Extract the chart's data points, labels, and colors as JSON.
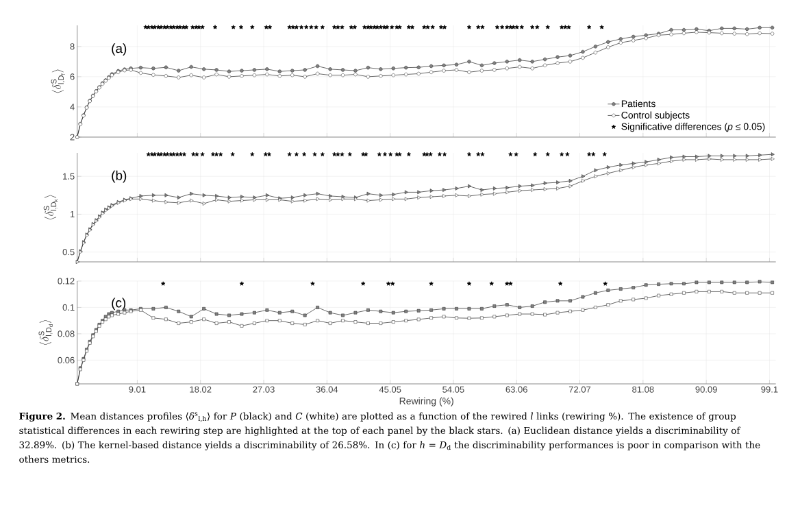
{
  "chart_data": [
    {
      "type": "line",
      "ylabel": "\\langle\\delta^{\\mathrm{S}}_{\\mathrm{l,D_f}}\\rangle",
      "marker": "circle",
      "grid": true,
      "legend": "bottom right",
      "tick_labels": "y",
      "xlim": [
        0.45,
        100
      ],
      "ylim": [
        2,
        9.4
      ],
      "xticks": [
        9.01,
        18.02,
        27.03,
        36.04,
        45.05,
        54.05,
        63.06,
        72.07,
        81.08,
        90.09,
        99.1
      ],
      "yticks": [
        2,
        4,
        6,
        8
      ],
      "annotations": [
        "(a)"
      ],
      "x": [
        0.45,
        0.9,
        1.35,
        1.8,
        2.25,
        2.7,
        3.15,
        3.6,
        4.05,
        4.5,
        4.95,
        5.4,
        6.3,
        7.2,
        8.1,
        9.5,
        11.3,
        13.1,
        14.9,
        16.7,
        18.5,
        20.3,
        22.1,
        23.9,
        25.7,
        27.5,
        29.3,
        31.1,
        32.9,
        34.7,
        36.5,
        38.3,
        40.1,
        41.9,
        43.7,
        45.5,
        47.3,
        49.1,
        50.9,
        52.7,
        54.5,
        56.3,
        58.1,
        59.9,
        61.7,
        63.5,
        65.3,
        67.1,
        68.9,
        70.7,
        72.5,
        74.3,
        76.1,
        77.9,
        79.7,
        81.5,
        83.3,
        85.1,
        86.9,
        88.7,
        90.5,
        92.3,
        94.1,
        95.9,
        97.7,
        99.5
      ],
      "series": [
        {
          "name": "Patients",
          "color": "#808080",
          "values": [
            2.0,
            2.88,
            3.45,
            3.97,
            4.41,
            4.75,
            5.05,
            5.31,
            5.57,
            5.77,
            5.97,
            6.17,
            6.38,
            6.49,
            6.55,
            6.6,
            6.55,
            6.62,
            6.4,
            6.65,
            6.5,
            6.45,
            6.35,
            6.4,
            6.45,
            6.5,
            6.35,
            6.4,
            6.45,
            6.7,
            6.5,
            6.45,
            6.4,
            6.6,
            6.5,
            6.55,
            6.6,
            6.62,
            6.7,
            6.75,
            6.8,
            7.0,
            6.75,
            6.9,
            7.0,
            7.1,
            7.0,
            7.15,
            7.3,
            7.4,
            7.65,
            8.0,
            8.3,
            8.5,
            8.65,
            8.75,
            8.85,
            9.1,
            9.1,
            9.15,
            9.05,
            9.2,
            9.2,
            9.15,
            9.25,
            9.25
          ]
        },
        {
          "name": "Control subjects",
          "color": "#ffffff",
          "values": [
            2.0,
            2.85,
            3.42,
            3.95,
            4.38,
            4.72,
            5.02,
            5.28,
            5.52,
            5.73,
            5.92,
            6.1,
            6.3,
            6.42,
            6.45,
            6.25,
            6.12,
            6.05,
            5.95,
            6.1,
            5.95,
            6.15,
            6.0,
            6.05,
            6.1,
            6.15,
            6.05,
            6.1,
            6.0,
            6.2,
            6.1,
            6.1,
            6.15,
            6.0,
            6.05,
            6.1,
            6.15,
            6.2,
            6.3,
            6.4,
            6.45,
            6.3,
            6.4,
            6.45,
            6.55,
            6.65,
            6.55,
            6.75,
            6.9,
            7.0,
            7.25,
            7.6,
            7.95,
            8.25,
            8.4,
            8.55,
            8.75,
            8.8,
            8.88,
            8.95,
            8.92,
            8.88,
            8.85,
            8.82,
            8.88,
            8.85
          ]
        },
        {
          "name": "Significative differences (*p* ≤ 0.05)",
          "type": "scatter",
          "marker": "star",
          "color": "#000000",
          "x": [
            10.2,
            10.6,
            11.1,
            11.5,
            12.0,
            12.4,
            12.9,
            13.3,
            13.8,
            14.2,
            14.7,
            15.1,
            15.6,
            16.0,
            16.9,
            17.4,
            17.8,
            18.3,
            20.1,
            22.7,
            23.8,
            25.4,
            27.4,
            27.9,
            30.7,
            31.2,
            31.7,
            32.4,
            33.1,
            33.8,
            34.5,
            35.4,
            37.1,
            37.6,
            38.2,
            39.5,
            40.0,
            41.4,
            41.9,
            42.3,
            42.8,
            43.2,
            43.7,
            44.2,
            44.6,
            45.3,
            46.0,
            46.4,
            47.7,
            48.2,
            49.9,
            50.4,
            51.1,
            52.3,
            52.8,
            56.3,
            57.6,
            58.2,
            60.3,
            61.0,
            61.7,
            62.2,
            62.6,
            63.1,
            63.8,
            65.3,
            66.0,
            67.5,
            69.5,
            70.0,
            70.5,
            73.4,
            75.2
          ],
          "values": [
            9.28,
            9.28,
            9.28,
            9.28,
            9.28,
            9.28,
            9.28,
            9.28,
            9.28,
            9.28,
            9.28,
            9.28,
            9.28,
            9.28,
            9.28,
            9.28,
            9.28,
            9.28,
            9.28,
            9.28,
            9.28,
            9.28,
            9.28,
            9.28,
            9.28,
            9.28,
            9.28,
            9.28,
            9.28,
            9.28,
            9.28,
            9.28,
            9.28,
            9.28,
            9.28,
            9.28,
            9.28,
            9.28,
            9.28,
            9.28,
            9.28,
            9.28,
            9.28,
            9.28,
            9.28,
            9.28,
            9.28,
            9.28,
            9.28,
            9.28,
            9.28,
            9.28,
            9.28,
            9.28,
            9.28,
            9.28,
            9.28,
            9.28,
            9.28,
            9.28,
            9.28,
            9.28,
            9.28,
            9.28,
            9.28,
            9.28,
            9.28,
            9.28,
            9.28,
            9.28,
            9.28,
            9.28,
            9.28
          ]
        }
      ]
    },
    {
      "type": "line",
      "ylabel": "\\langle\\delta^{\\mathrm{S}}_{\\mathrm{l,D_k}}\\rangle",
      "marker": "triangle",
      "grid": true,
      "tick_labels": "y",
      "xlim": [
        0.45,
        100
      ],
      "ylim": [
        0.37,
        1.81
      ],
      "xticks": [
        9.01,
        18.02,
        27.03,
        36.04,
        45.05,
        54.05,
        63.06,
        72.07,
        81.08,
        90.09,
        99.1
      ],
      "yticks": [
        0.5,
        1,
        1.5
      ],
      "annotations": [
        "(b)"
      ],
      "x": [
        0.45,
        0.9,
        1.35,
        1.8,
        2.25,
        2.7,
        3.15,
        3.6,
        4.05,
        4.5,
        4.95,
        5.4,
        6.3,
        7.2,
        8.1,
        9.5,
        11.3,
        13.1,
        14.9,
        16.7,
        18.5,
        20.3,
        22.1,
        23.9,
        25.7,
        27.5,
        29.3,
        31.1,
        32.9,
        34.7,
        36.5,
        38.3,
        40.1,
        41.9,
        43.7,
        45.5,
        47.3,
        49.1,
        50.9,
        52.7,
        54.5,
        56.3,
        58.1,
        59.9,
        61.7,
        63.5,
        65.3,
        67.1,
        68.9,
        70.7,
        72.5,
        74.3,
        76.1,
        77.9,
        79.7,
        81.5,
        83.3,
        85.1,
        86.9,
        88.7,
        90.5,
        92.3,
        94.1,
        95.9,
        97.7,
        99.5
      ],
      "series": [
        {
          "color": "#808080",
          "values": [
            0.37,
            0.51,
            0.63,
            0.73,
            0.8,
            0.87,
            0.92,
            0.97,
            1.02,
            1.06,
            1.09,
            1.12,
            1.16,
            1.19,
            1.21,
            1.24,
            1.25,
            1.25,
            1.22,
            1.27,
            1.25,
            1.24,
            1.22,
            1.23,
            1.22,
            1.25,
            1.21,
            1.22,
            1.25,
            1.27,
            1.24,
            1.23,
            1.22,
            1.27,
            1.25,
            1.26,
            1.29,
            1.29,
            1.31,
            1.32,
            1.34,
            1.37,
            1.32,
            1.34,
            1.35,
            1.37,
            1.38,
            1.41,
            1.42,
            1.44,
            1.5,
            1.58,
            1.62,
            1.65,
            1.67,
            1.69,
            1.72,
            1.75,
            1.76,
            1.76,
            1.77,
            1.77,
            1.77,
            1.77,
            1.78,
            1.79
          ]
        },
        {
          "color": "#ffffff",
          "values": [
            0.37,
            0.5,
            0.62,
            0.72,
            0.79,
            0.86,
            0.91,
            0.96,
            1.01,
            1.05,
            1.08,
            1.11,
            1.15,
            1.18,
            1.2,
            1.2,
            1.18,
            1.16,
            1.15,
            1.18,
            1.14,
            1.19,
            1.17,
            1.18,
            1.19,
            1.19,
            1.19,
            1.17,
            1.18,
            1.2,
            1.19,
            1.2,
            1.2,
            1.18,
            1.19,
            1.2,
            1.2,
            1.22,
            1.23,
            1.24,
            1.25,
            1.24,
            1.26,
            1.27,
            1.29,
            1.31,
            1.32,
            1.33,
            1.34,
            1.37,
            1.44,
            1.5,
            1.54,
            1.58,
            1.62,
            1.65,
            1.67,
            1.7,
            1.72,
            1.72,
            1.73,
            1.72,
            1.72,
            1.72,
            1.72,
            1.73
          ]
        },
        {
          "type": "scatter",
          "marker": "star",
          "color": "#000000",
          "x": [
            10.6,
            11.1,
            11.5,
            12.0,
            12.4,
            12.9,
            13.3,
            13.8,
            14.2,
            14.7,
            15.2,
            15.7,
            17.0,
            17.5,
            18.3,
            19.8,
            20.3,
            20.9,
            22.6,
            25.4,
            27.3,
            27.8,
            30.7,
            31.7,
            32.8,
            34.3,
            35.4,
            37.1,
            37.6,
            38.2,
            39.3,
            41.2,
            41.6,
            43.5,
            44.3,
            45.1,
            46.0,
            46.4,
            47.7,
            49.9,
            50.3,
            50.8,
            52.1,
            52.8,
            56.3,
            57.6,
            58.2,
            62.2,
            63.0,
            65.7,
            67.5,
            69.5,
            70.3,
            73.4,
            74.0,
            75.6
          ],
          "values": [
            1.79,
            1.79,
            1.79,
            1.79,
            1.79,
            1.79,
            1.79,
            1.79,
            1.79,
            1.79,
            1.79,
            1.79,
            1.79,
            1.79,
            1.79,
            1.79,
            1.79,
            1.79,
            1.79,
            1.79,
            1.79,
            1.79,
            1.79,
            1.79,
            1.79,
            1.79,
            1.79,
            1.79,
            1.79,
            1.79,
            1.79,
            1.79,
            1.79,
            1.79,
            1.79,
            1.79,
            1.79,
            1.79,
            1.79,
            1.79,
            1.79,
            1.79,
            1.79,
            1.79,
            1.79,
            1.79,
            1.79,
            1.79,
            1.79,
            1.79,
            1.79,
            1.79,
            1.79,
            1.79,
            1.79,
            1.79
          ]
        }
      ]
    },
    {
      "type": "line",
      "ylabel": "\\langle\\delta^{\\mathrm{S}}_{\\mathrm{l,D_d}}\\rangle",
      "xlabel": "Rewiring (%)",
      "marker": "square",
      "grid": true,
      "xlim": [
        0.45,
        100
      ],
      "ylim": [
        0.042,
        0.12
      ],
      "xticks": [
        9.01,
        18.02,
        27.03,
        36.04,
        45.05,
        54.05,
        63.06,
        72.07,
        81.08,
        90.09,
        99.1
      ],
      "yticks": [
        0.06,
        0.08,
        0.1,
        0.12
      ],
      "annotations": [
        "(c)",
        "**Figure 2.** Mean distances profiles ⟨*δ*$^{s}$$_{l,h}$⟩ for *P* (black) and *C* (white) are plotted as a function of the rewired *l* links (rewiring %). The existence of group statistical differences in each rewiring step are highlighted at the top of each panel by the black stars. (a) Euclidean distance yields a discriminability of 32.89%. (b) The kernel-based distance yields a discriminability of 26.58%. In (c) for *h* = *D*$_{d}$ the discriminability performances is poor in comparison with the others metrics."
      ],
      "x": [
        0.45,
        0.9,
        1.35,
        1.8,
        2.25,
        2.7,
        3.15,
        3.6,
        4.05,
        4.5,
        4.95,
        5.4,
        6.3,
        7.2,
        8.1,
        9.5,
        11.3,
        13.1,
        14.9,
        16.7,
        18.5,
        20.3,
        22.1,
        23.9,
        25.7,
        27.5,
        29.3,
        31.1,
        32.9,
        34.7,
        36.5,
        38.3,
        40.1,
        41.9,
        43.7,
        45.5,
        47.3,
        49.1,
        50.9,
        52.7,
        54.5,
        56.3,
        58.1,
        59.9,
        61.7,
        63.5,
        65.3,
        67.1,
        68.9,
        70.7,
        72.5,
        74.3,
        76.1,
        77.9,
        79.7,
        81.5,
        83.3,
        85.1,
        86.9,
        88.7,
        90.5,
        92.3,
        94.1,
        95.9,
        97.7,
        99.5
      ],
      "series": [
        {
          "color": "#808080",
          "values": [
            0.042,
            0.054,
            0.061,
            0.068,
            0.074,
            0.079,
            0.083,
            0.087,
            0.09,
            0.093,
            0.095,
            0.096,
            0.097,
            0.098,
            0.098,
            0.099,
            0.099,
            0.1,
            0.097,
            0.093,
            0.099,
            0.095,
            0.094,
            0.095,
            0.096,
            0.098,
            0.096,
            0.097,
            0.094,
            0.1,
            0.096,
            0.094,
            0.096,
            0.098,
            0.097,
            0.096,
            0.097,
            0.0975,
            0.098,
            0.099,
            0.099,
            0.099,
            0.099,
            0.101,
            0.102,
            0.1,
            0.101,
            0.104,
            0.105,
            0.105,
            0.108,
            0.111,
            0.113,
            0.114,
            0.115,
            0.117,
            0.1176,
            0.118,
            0.118,
            0.119,
            0.119,
            0.119,
            0.119,
            0.119,
            0.1195,
            0.119
          ]
        },
        {
          "color": "#ffffff",
          "values": [
            0.042,
            0.053,
            0.06,
            0.067,
            0.073,
            0.078,
            0.082,
            0.086,
            0.089,
            0.091,
            0.093,
            0.094,
            0.095,
            0.096,
            0.097,
            0.098,
            0.092,
            0.091,
            0.088,
            0.089,
            0.091,
            0.088,
            0.089,
            0.086,
            0.088,
            0.09,
            0.09,
            0.088,
            0.087,
            0.09,
            0.088,
            0.09,
            0.089,
            0.088,
            0.088,
            0.089,
            0.09,
            0.0909,
            0.092,
            0.093,
            0.092,
            0.0918,
            0.092,
            0.093,
            0.094,
            0.095,
            0.095,
            0.0945,
            0.096,
            0.097,
            0.098,
            0.1,
            0.102,
            0.105,
            0.106,
            0.107,
            0.109,
            0.11,
            0.111,
            0.112,
            0.112,
            0.112,
            0.111,
            0.111,
            0.111,
            0.111
          ]
        },
        {
          "type": "scatter",
          "marker": "star",
          "color": "#000000",
          "x": [
            12.7,
            23.9,
            34.0,
            41.2,
            44.8,
            45.4,
            50.9,
            56.3,
            59.5,
            61.7,
            62.2,
            69.3,
            75.7
          ],
          "values": [
            0.118,
            0.118,
            0.118,
            0.118,
            0.118,
            0.118,
            0.118,
            0.118,
            0.118,
            0.118,
            0.118,
            0.118,
            0.118
          ]
        }
      ]
    }
  ]
}
